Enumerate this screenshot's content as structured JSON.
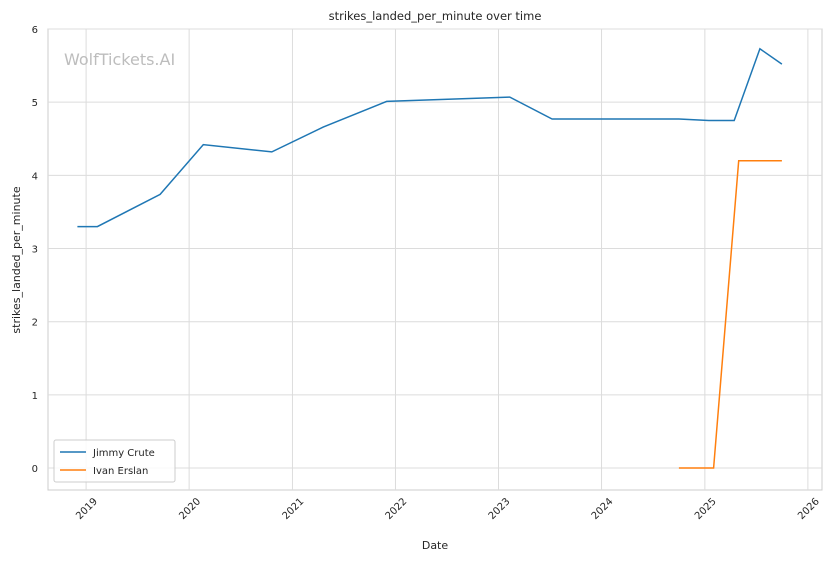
{
  "chart_data": {
    "type": "line",
    "title": "strikes_landed_per_minute over time",
    "xlabel": "Date",
    "ylabel": "strikes_landed_per_minute",
    "watermark": "WolfTickets.AI",
    "xlim": [
      "2018-08-19",
      "2026-02-20"
    ],
    "ylim": [
      -0.3,
      6
    ],
    "x_ticks": [
      "2019",
      "2020",
      "2021",
      "2022",
      "2023",
      "2024",
      "2025",
      "2026"
    ],
    "y_ticks": [
      0,
      1,
      2,
      3,
      4,
      5,
      6
    ],
    "grid": true,
    "legend_position": "lower-left",
    "series": [
      {
        "name": "Jimmy Crute",
        "color": "#1f77b4",
        "points": [
          [
            "2018-12-01",
            3.3
          ],
          [
            "2019-02-10",
            3.3
          ],
          [
            "2019-09-20",
            3.74
          ],
          [
            "2020-02-20",
            4.42
          ],
          [
            "2020-10-20",
            4.32
          ],
          [
            "2021-04-20",
            4.66
          ],
          [
            "2021-12-01",
            5.01
          ],
          [
            "2023-02-10",
            5.07
          ],
          [
            "2023-07-10",
            4.77
          ],
          [
            "2024-10-01",
            4.77
          ],
          [
            "2025-01-15",
            4.75
          ],
          [
            "2025-04-15",
            4.75
          ],
          [
            "2025-07-15",
            5.73
          ],
          [
            "2025-10-01",
            5.52
          ]
        ]
      },
      {
        "name": "Ivan Erslan",
        "color": "#ff7f0e",
        "points": [
          [
            "2024-10-01",
            0.0
          ],
          [
            "2025-02-01",
            0.0
          ],
          [
            "2025-05-01",
            4.2
          ],
          [
            "2025-10-01",
            4.2
          ]
        ]
      }
    ]
  }
}
